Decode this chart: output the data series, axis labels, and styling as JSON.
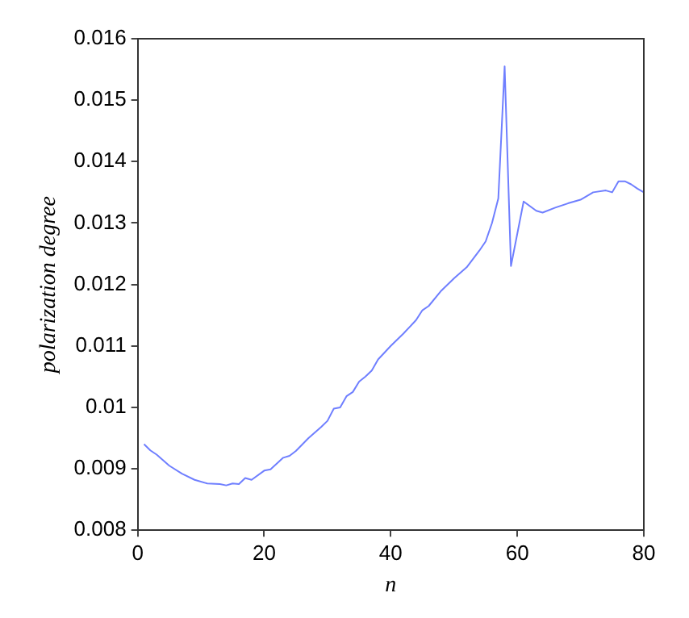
{
  "chart_data": {
    "type": "line",
    "xlabel": "n",
    "ylabel": "polarization degree",
    "xlim": [
      0,
      80
    ],
    "ylim": [
      0.008,
      0.016
    ],
    "xticks": [
      0,
      20,
      40,
      60,
      80
    ],
    "yticks": [
      0.008,
      0.009,
      0.01,
      0.011,
      0.012,
      0.013,
      0.014,
      0.015,
      0.016
    ],
    "grid": false,
    "legend": false,
    "marker": "none",
    "line_style": "solid",
    "series": [
      {
        "color": "#6f7fff",
        "x": [
          1,
          2,
          3,
          5,
          7,
          9,
          11,
          13,
          14,
          15,
          16,
          17,
          18,
          20,
          21,
          23,
          24,
          25,
          27,
          29,
          30,
          31,
          32,
          33,
          34,
          35,
          36,
          37,
          38,
          40,
          42,
          44,
          45,
          46,
          48,
          50,
          52,
          54,
          55,
          56,
          57,
          58,
          59,
          61,
          63,
          64,
          66,
          68,
          70,
          72,
          74,
          75,
          76,
          77,
          78,
          79,
          80
        ],
        "values": [
          0.0094,
          0.0093,
          0.00923,
          0.00905,
          0.00892,
          0.00882,
          0.00876,
          0.00875,
          0.00873,
          0.00876,
          0.00875,
          0.00885,
          0.00882,
          0.00897,
          0.00899,
          0.00918,
          0.00921,
          0.00929,
          0.0095,
          0.00968,
          0.00978,
          0.00998,
          0.01,
          0.01018,
          0.01025,
          0.01042,
          0.0105,
          0.0106,
          0.01078,
          0.011,
          0.0112,
          0.01142,
          0.01158,
          0.01165,
          0.0119,
          0.0121,
          0.01228,
          0.01255,
          0.0127,
          0.013,
          0.0134,
          0.01555,
          0.0123,
          0.01335,
          0.0132,
          0.01317,
          0.01325,
          0.01332,
          0.01338,
          0.0135,
          0.01353,
          0.0135,
          0.01368,
          0.01368,
          0.01363,
          0.01356,
          0.0135
        ]
      }
    ]
  }
}
